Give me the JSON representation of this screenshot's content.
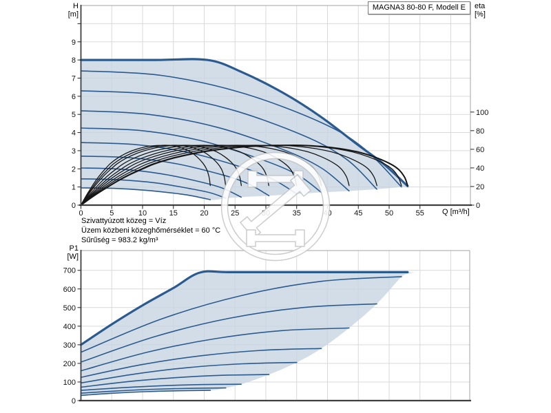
{
  "header": {
    "title": "MAGNA3 80-80 F, Modell E"
  },
  "conditions": [
    "Szivattyúzott közeg = Víz",
    "Üzem közbeni közeghőmérséklet = 60 °C",
    "Sűrűség = 983.2 kg/m³"
  ],
  "colors": {
    "curve_blue": "#2a5a8e",
    "efficiency_black": "#161616",
    "envelope_fill": "#c7d4e2",
    "grid": "#d9d9d9",
    "frame": "#a3a3a3",
    "axis_dark": "#3f3f3f",
    "tick": "#222222",
    "watermark": "#c6c6c6"
  },
  "chart_data": [
    {
      "id": "head-efficiency-chart",
      "type": "line",
      "title": "MAGNA3 80-80 F, Modell E",
      "x_axis": {
        "label": "Q [m³/h]",
        "ticks": [
          0,
          5,
          10,
          15,
          20,
          25,
          30,
          35,
          40,
          45,
          50,
          55
        ],
        "range": [
          0,
          63.2
        ],
        "grid_step": 5
      },
      "y_axis": {
        "label": "H",
        "unit": "[m]",
        "ticks": [
          0,
          1,
          2,
          3,
          4,
          5,
          6,
          7,
          8,
          9
        ],
        "range": [
          0,
          11
        ]
      },
      "y2_axis": {
        "label": "eta",
        "unit": "[%]",
        "ticks": [
          0,
          20,
          40,
          60,
          80,
          100
        ],
        "range": [
          0,
          100
        ]
      },
      "pump_curves": [
        {
          "shutoff_head_m": 8.0,
          "max_flow_m3h": 53,
          "points": [
            [
              0,
              8
            ],
            [
              12,
              8
            ],
            [
              20.5,
              8
            ],
            [
              26,
              7.35
            ],
            [
              33,
              6.15
            ],
            [
              39,
              4.85
            ],
            [
              45,
              3.3
            ],
            [
              49,
              2.3
            ],
            [
              53,
              1.05
            ]
          ]
        },
        {
          "shutoff_head_m": 7.4,
          "max_flow_m3h": 52,
          "points": [
            [
              0,
              7.4
            ],
            [
              13,
              7.15
            ],
            [
              26,
              6.2
            ],
            [
              39,
              4.55
            ],
            [
              46,
              3.1
            ],
            [
              52,
              1.0
            ]
          ]
        },
        {
          "shutoff_head_m": 6.3,
          "max_flow_m3h": 48,
          "points": [
            [
              0,
              6.3
            ],
            [
              12,
              6.1
            ],
            [
              24,
              5.3
            ],
            [
              36,
              3.85
            ],
            [
              43,
              2.55
            ],
            [
              48,
              0.88
            ]
          ]
        },
        {
          "shutoff_head_m": 5.2,
          "max_flow_m3h": 43.5,
          "points": [
            [
              0,
              5.2
            ],
            [
              11,
              5.0
            ],
            [
              22,
              4.3
            ],
            [
              32.5,
              3.1
            ],
            [
              39,
              2.05
            ],
            [
              43.5,
              0.78
            ]
          ]
        },
        {
          "shutoff_head_m": 4.25,
          "max_flow_m3h": 39,
          "points": [
            [
              0,
              4.25
            ],
            [
              10,
              4.1
            ],
            [
              19.5,
              3.55
            ],
            [
              29,
              2.55
            ],
            [
              35,
              1.7
            ],
            [
              39,
              0.7
            ]
          ]
        },
        {
          "shutoff_head_m": 3.45,
          "max_flow_m3h": 35,
          "points": [
            [
              0,
              3.45
            ],
            [
              9,
              3.33
            ],
            [
              17.5,
              2.9
            ],
            [
              26,
              2.1
            ],
            [
              31,
              1.45
            ],
            [
              35,
              0.62
            ]
          ]
        },
        {
          "shutoff_head_m": 2.7,
          "max_flow_m3h": 30.5,
          "points": [
            [
              0,
              2.7
            ],
            [
              8,
              2.61
            ],
            [
              15.5,
              2.28
            ],
            [
              23,
              1.66
            ],
            [
              27,
              1.2
            ],
            [
              30.5,
              0.52
            ]
          ]
        },
        {
          "shutoff_head_m": 2.05,
          "max_flow_m3h": 26,
          "points": [
            [
              0,
              2.05
            ],
            [
              6.5,
              1.98
            ],
            [
              13,
              1.73
            ],
            [
              19.5,
              1.27
            ],
            [
              23,
              0.93
            ],
            [
              26,
              0.44
            ]
          ]
        },
        {
          "shutoff_head_m": 1.45,
          "max_flow_m3h": 23.5,
          "points": [
            [
              0,
              1.45
            ],
            [
              6,
              1.4
            ],
            [
              12,
              1.23
            ],
            [
              17.5,
              0.92
            ],
            [
              21,
              0.68
            ],
            [
              23.5,
              0.38
            ]
          ]
        },
        {
          "shutoff_head_m": 0.95,
          "max_flow_m3h": 21,
          "points": [
            [
              0,
              0.95
            ],
            [
              5.5,
              0.92
            ],
            [
              10.5,
              0.82
            ],
            [
              16,
              0.62
            ],
            [
              18.5,
              0.48
            ],
            [
              21,
              0.3
            ]
          ]
        }
      ],
      "efficiency": {
        "peak_percent": 64.3,
        "base_points": [
          [
            0,
            0
          ],
          [
            2,
            9.5
          ],
          [
            4,
            18
          ],
          [
            6,
            26
          ],
          [
            8,
            33
          ],
          [
            10,
            39
          ],
          [
            12,
            44.5
          ],
          [
            15,
            50.5
          ],
          [
            18,
            55
          ],
          [
            21,
            58.5
          ],
          [
            24,
            61
          ],
          [
            27,
            62.9
          ],
          [
            30,
            63.9
          ],
          [
            33,
            64.3
          ],
          [
            36,
            64.2
          ],
          [
            39,
            63
          ],
          [
            42,
            60.7
          ],
          [
            45,
            57
          ],
          [
            47.5,
            52
          ],
          [
            50,
            45
          ],
          [
            51.5,
            38.5
          ],
          [
            52.5,
            30
          ],
          [
            53,
            21
          ]
        ],
        "speed_scales": [
          1,
          0.981,
          0.906,
          0.821,
          0.736,
          0.66,
          0.575,
          0.491,
          0.443,
          0.396
        ]
      },
      "envelope": [
        [
          0,
          8
        ],
        [
          12,
          8
        ],
        [
          20.5,
          8
        ],
        [
          26,
          7.35
        ],
        [
          33,
          6.15
        ],
        [
          39,
          4.85
        ],
        [
          45,
          3.3
        ],
        [
          49,
          2.3
        ],
        [
          53,
          1.05
        ],
        [
          52,
          1.0
        ],
        [
          48,
          0.88
        ],
        [
          43.5,
          0.78
        ],
        [
          39,
          0.7
        ],
        [
          35,
          0.62
        ],
        [
          30.5,
          0.52
        ],
        [
          26,
          0.44
        ],
        [
          23.5,
          0.38
        ],
        [
          21,
          0.3
        ],
        [
          16,
          0.62
        ],
        [
          10.5,
          0.82
        ],
        [
          5.5,
          0.92
        ],
        [
          0,
          0.95
        ]
      ]
    },
    {
      "id": "power-chart",
      "type": "line",
      "x_axis": {
        "label": "",
        "ticks": [],
        "range": [
          0,
          63.2
        ],
        "grid_step": 5
      },
      "y_axis": {
        "label": "P1",
        "unit": "[W]",
        "ticks": [
          0,
          100,
          200,
          300,
          400,
          500,
          600,
          700
        ],
        "range": [
          0,
          810
        ]
      },
      "pump_curves": [
        {
          "p0_w": 300,
          "max_flow_m3h": 53,
          "points": [
            [
              0,
              300
            ],
            [
              5,
              410
            ],
            [
              10,
              512
            ],
            [
              15,
              605
            ],
            [
              19.3,
              688
            ],
            [
              24,
              690
            ],
            [
              35,
              690
            ],
            [
              53,
              690
            ]
          ]
        },
        {
          "p0_w": 260,
          "max_flow_m3h": 52,
          "points": [
            [
              0,
              260
            ],
            [
              13,
              438
            ],
            [
              26,
              564
            ],
            [
              39,
              641
            ],
            [
              52,
              666
            ]
          ]
        },
        {
          "p0_w": 207,
          "max_flow_m3h": 48,
          "points": [
            [
              0,
              207
            ],
            [
              12,
              344
            ],
            [
              24,
              442
            ],
            [
              36,
              500
            ],
            [
              48,
              520
            ]
          ]
        },
        {
          "p0_w": 160,
          "max_flow_m3h": 43.5,
          "points": [
            [
              0,
              160
            ],
            [
              10.9,
              261
            ],
            [
              21.8,
              333
            ],
            [
              32.6,
              376
            ],
            [
              43.5,
              390
            ]
          ]
        },
        {
          "p0_w": 125,
          "max_flow_m3h": 39,
          "points": [
            [
              0,
              125
            ],
            [
              9.8,
              193
            ],
            [
              19.5,
              241
            ],
            [
              29.3,
              270
            ],
            [
              39,
              280
            ]
          ]
        },
        {
          "p0_w": 95,
          "max_flow_m3h": 35,
          "points": [
            [
              0,
              95
            ],
            [
              8.8,
              143
            ],
            [
              17.5,
              178
            ],
            [
              26.3,
              198
            ],
            [
              35,
              205
            ]
          ]
        },
        {
          "p0_w": 72,
          "max_flow_m3h": 30.5,
          "points": [
            [
              0,
              72
            ],
            [
              7.6,
              102
            ],
            [
              15.3,
              123
            ],
            [
              22.9,
              136
            ],
            [
              30.5,
              140
            ]
          ]
        },
        {
          "p0_w": 55,
          "max_flow_m3h": 26,
          "points": [
            [
              0,
              55
            ],
            [
              6.5,
              69
            ],
            [
              13,
              80
            ],
            [
              19.5,
              86
            ],
            [
              26,
              88
            ]
          ]
        },
        {
          "p0_w": 40,
          "max_flow_m3h": 23.5,
          "points": [
            [
              0,
              40
            ],
            [
              5.9,
              52
            ],
            [
              11.8,
              61
            ],
            [
              17.6,
              66
            ],
            [
              23.5,
              68
            ]
          ]
        },
        {
          "p0_w": 28,
          "max_flow_m3h": 21,
          "points": [
            [
              0,
              28
            ],
            [
              5.3,
              40
            ],
            [
              10.5,
              48
            ],
            [
              15.8,
              53
            ],
            [
              21,
              55
            ]
          ]
        }
      ],
      "envelope": [
        [
          0,
          300
        ],
        [
          5,
          410
        ],
        [
          10,
          512
        ],
        [
          15,
          605
        ],
        [
          19.3,
          688
        ],
        [
          24,
          690
        ],
        [
          35,
          690
        ],
        [
          53,
          690
        ],
        [
          52,
          666
        ],
        [
          48,
          520
        ],
        [
          43.5,
          390
        ],
        [
          39,
          280
        ],
        [
          35,
          205
        ],
        [
          30.5,
          140
        ],
        [
          26,
          88
        ],
        [
          23.5,
          68
        ],
        [
          21,
          55
        ],
        [
          15.8,
          53
        ],
        [
          10.5,
          48
        ],
        [
          5.3,
          40
        ],
        [
          0,
          28
        ]
      ]
    }
  ]
}
